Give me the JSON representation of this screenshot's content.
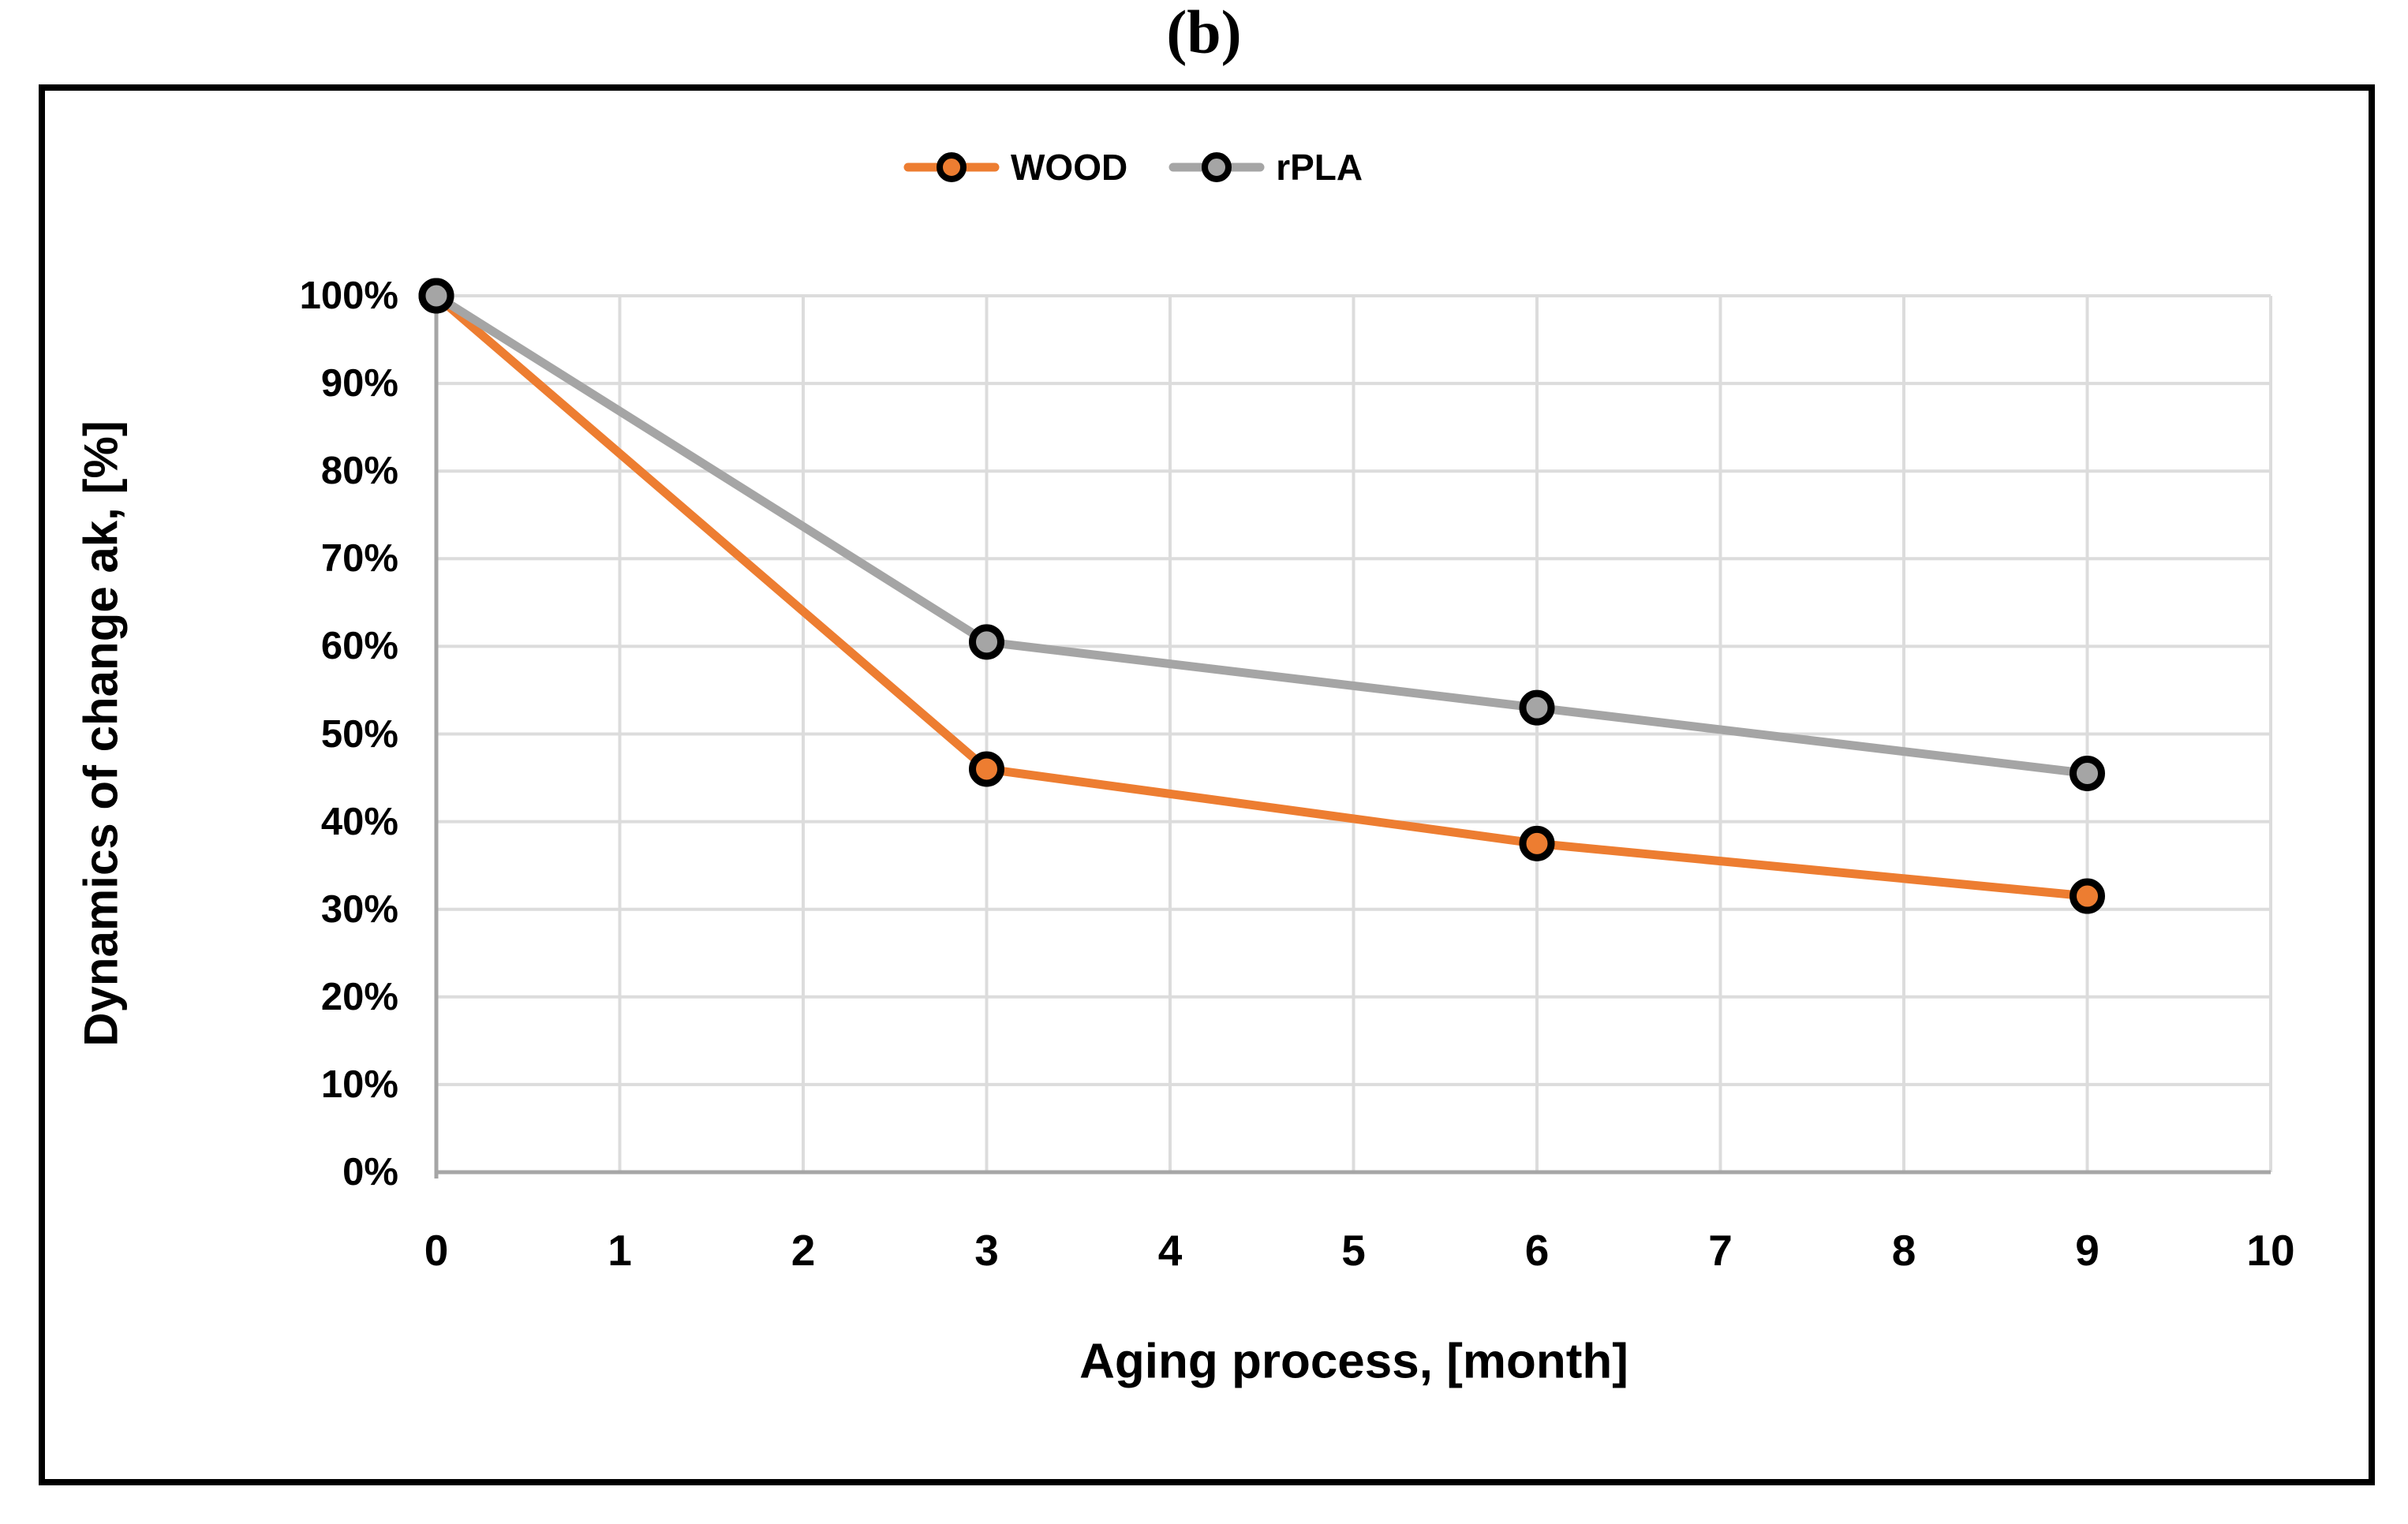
{
  "figure_label": "(b)",
  "chart_data": {
    "type": "line",
    "title": "(b)",
    "x": [
      0,
      3,
      6,
      9
    ],
    "series": [
      {
        "name": "WOOD",
        "color": "#ED7D31",
        "marker": "circle",
        "marker_outline": "#000000",
        "values": [
          100,
          46,
          37.5,
          31.5
        ]
      },
      {
        "name": "rPLA",
        "color": "#A5A5A5",
        "marker": "circle",
        "marker_outline": "#000000",
        "values": [
          100,
          60.5,
          53,
          45.5
        ]
      }
    ],
    "xlabel": "Aging process, [month]",
    "ylabel": "Dynamics of change ak, [%]",
    "xlim": [
      0,
      10
    ],
    "ylim": [
      0,
      100
    ],
    "xticks": [
      "0",
      "1",
      "2",
      "3",
      "4",
      "5",
      "6",
      "7",
      "8",
      "9",
      "10"
    ],
    "ytick_values": [
      0,
      10,
      20,
      30,
      40,
      50,
      60,
      70,
      80,
      90,
      100
    ],
    "ytick_labels": [
      "0%",
      "10%",
      "20%",
      "30%",
      "40%",
      "50%",
      "60%",
      "70%",
      "80%",
      "90%",
      "100%"
    ],
    "grid": true,
    "legend_position": "top-center",
    "colors": {
      "gridline": "#DCDCDC",
      "axis_line": "#A6A6A6",
      "text": "#000000",
      "background": "#FFFFFF",
      "frame_border": "#000000"
    }
  }
}
